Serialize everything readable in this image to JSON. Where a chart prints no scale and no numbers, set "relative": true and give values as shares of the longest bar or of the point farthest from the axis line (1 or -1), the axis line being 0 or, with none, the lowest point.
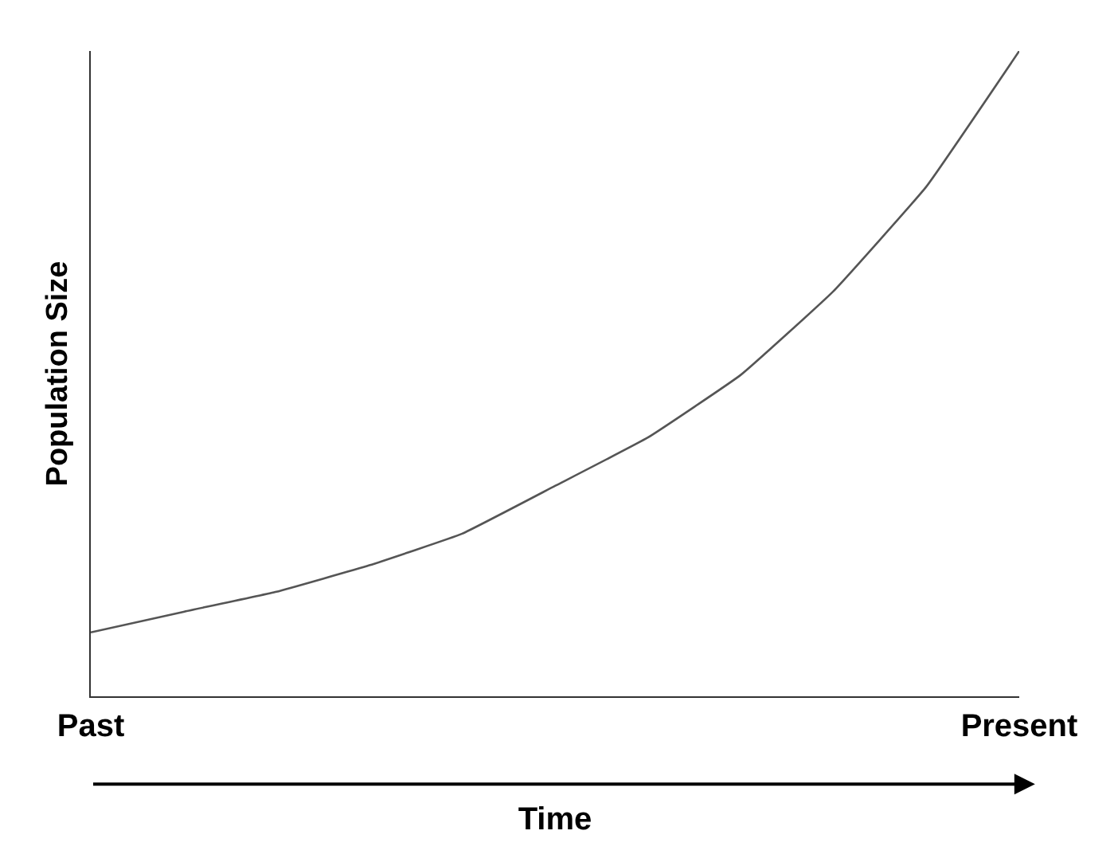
{
  "chart_data": {
    "type": "line",
    "relative": true,
    "xlabel": "Time",
    "ylabel": "Population Size",
    "categories": [
      "Past",
      null,
      null,
      null,
      null,
      null,
      null,
      null,
      null,
      null,
      "Present"
    ],
    "series": [
      {
        "color": "#555555",
        "values": [
          0.099,
          0.131,
          0.162,
          0.203,
          0.252,
          0.326,
          0.401,
          0.498,
          0.628,
          0.79,
          1.0
        ]
      }
    ],
    "marker": "none",
    "line_style": "solid"
  }
}
